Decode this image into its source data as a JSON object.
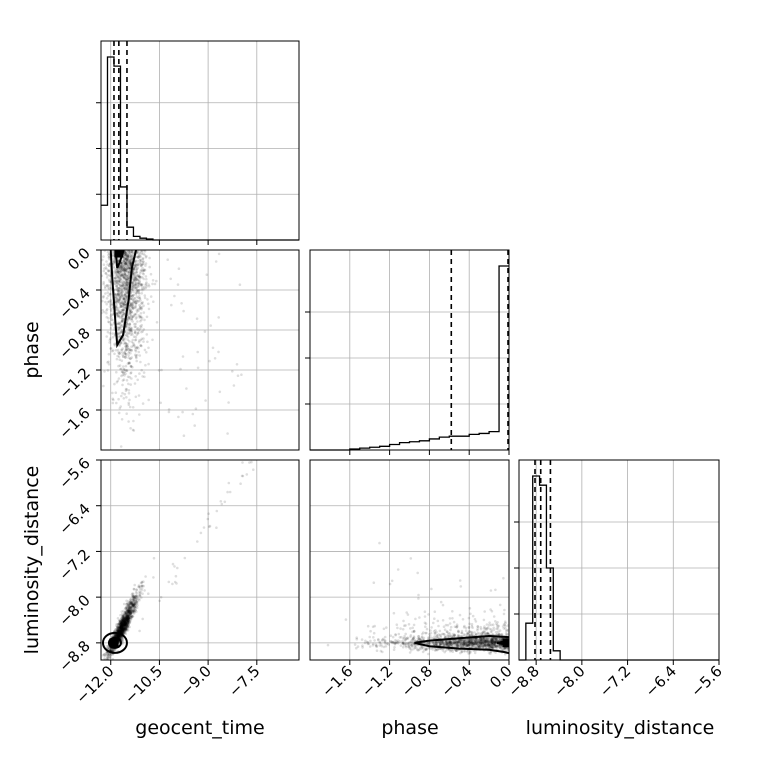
{
  "chart_data": {
    "type": "corner",
    "parameters": [
      "geocent_time",
      "phase",
      "luminosity_distance"
    ],
    "axes": {
      "geocent_time": {
        "range": [
          -12.3,
          -6.2
        ],
        "ticks": [
          -12.0,
          -10.5,
          -9.0,
          -7.5
        ],
        "tick_labels": [
          "−12.0",
          "−10.5",
          "−9.0",
          "−7.5"
        ]
      },
      "phase": {
        "range": [
          -2.0,
          0.0
        ],
        "ticks": [
          -1.6,
          -1.2,
          -0.8,
          -0.4,
          0.0
        ],
        "tick_labels": [
          "−1.6",
          "−1.2",
          "−0.8",
          "−0.4",
          "0.0"
        ]
      },
      "luminosity_distance": {
        "range": [
          -9.1,
          -5.6
        ],
        "ticks": [
          -8.8,
          -8.0,
          -7.2,
          -6.4,
          -5.6
        ],
        "tick_labels": [
          "−8.8",
          "−8.0",
          "−7.2",
          "−6.4",
          "−5.6"
        ]
      }
    },
    "histograms": {
      "geocent_time": {
        "edges": [
          -12.3,
          -12.1,
          -11.9,
          -11.7,
          -11.5,
          -11.3,
          -11.1,
          -10.9,
          -10.7,
          -10.5,
          -10.3
        ],
        "counts": [
          0.19,
          1.0,
          0.95,
          0.29,
          0.07,
          0.02,
          0.01,
          0.005,
          0.0,
          0.0
        ],
        "quantiles": [
          -11.9,
          -11.75,
          -11.5
        ]
      },
      "phase": {
        "edges": [
          -2.0,
          -1.9,
          -1.8,
          -1.7,
          -1.6,
          -1.5,
          -1.4,
          -1.3,
          -1.2,
          -1.1,
          -1.0,
          -0.9,
          -0.8,
          -0.7,
          -0.6,
          -0.5,
          -0.4,
          -0.3,
          -0.2,
          -0.1,
          0.0
        ],
        "counts": [
          0.0,
          0.0,
          0.0,
          0.0,
          0.005,
          0.01,
          0.015,
          0.02,
          0.03,
          0.04,
          0.045,
          0.05,
          0.06,
          0.07,
          0.075,
          0.075,
          0.085,
          0.09,
          0.1,
          1.0
        ],
        "quantiles": [
          -0.58,
          -0.01
        ]
      },
      "luminosity_distance": {
        "edges": [
          -9.1,
          -8.98,
          -8.86,
          -8.74,
          -8.62,
          -8.5,
          -8.38,
          -8.26,
          -8.14,
          -8.02,
          -7.9
        ],
        "counts": [
          0.0,
          0.2,
          1.0,
          0.95,
          0.5,
          0.05,
          0.0,
          0.0,
          0.0,
          0.0
        ],
        "quantiles": [
          -8.82,
          -8.72,
          -8.55
        ]
      }
    },
    "peaks": {
      "geocent_time_phase": [
        -11.75,
        -0.03
      ],
      "geocent_time_luminosity_distance": [
        -11.9,
        -8.8
      ],
      "phase_luminosity_distance": [
        -0.02,
        -8.8
      ]
    },
    "grid": true
  }
}
